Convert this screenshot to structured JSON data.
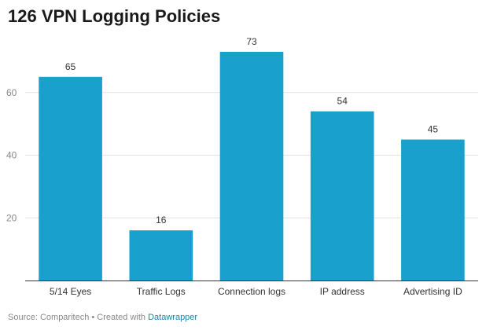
{
  "chart_data": {
    "type": "bar",
    "title": "126 VPN Logging Policies",
    "categories": [
      "5/14 Eyes",
      "Traffic Logs",
      "Connection logs",
      "IP address",
      "Advertising ID"
    ],
    "values": [
      65,
      16,
      73,
      54,
      45
    ],
    "ylim": [
      0,
      80
    ],
    "yticks": [
      20,
      40,
      60
    ],
    "xlabel": "",
    "ylabel": "",
    "grid": true,
    "bar_color": "#1aa0cc"
  },
  "footer": {
    "source_text": "Source: Comparitech • Created with ",
    "tool_name": "Datawrapper"
  },
  "colors": {
    "grid": "#e3e3e3",
    "axis": "#333333",
    "tick_label": "#888888",
    "category_label": "#333333",
    "value_label": "#333333",
    "link": "#1d81a2"
  }
}
